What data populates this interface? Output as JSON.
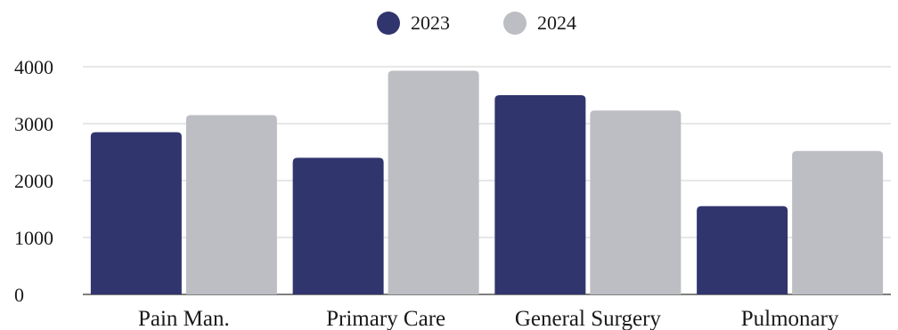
{
  "chart_data": {
    "type": "bar",
    "title": "",
    "xlabel": "",
    "ylabel": "",
    "categories": [
      "Pain Man.",
      "Primary Care",
      "General Surgery",
      "Pulmonary"
    ],
    "series": [
      {
        "name": "2023",
        "color": "#31356e",
        "values": [
          2850,
          2400,
          3500,
          1550
        ]
      },
      {
        "name": "2024",
        "color": "#bdbec3",
        "values": [
          3150,
          3930,
          3230,
          2520
        ]
      }
    ],
    "ylim": [
      0,
      4000
    ],
    "yticks": [
      "0",
      "1000",
      "2000",
      "3000",
      "4000"
    ],
    "grid": true,
    "legend_position": "top-center"
  }
}
